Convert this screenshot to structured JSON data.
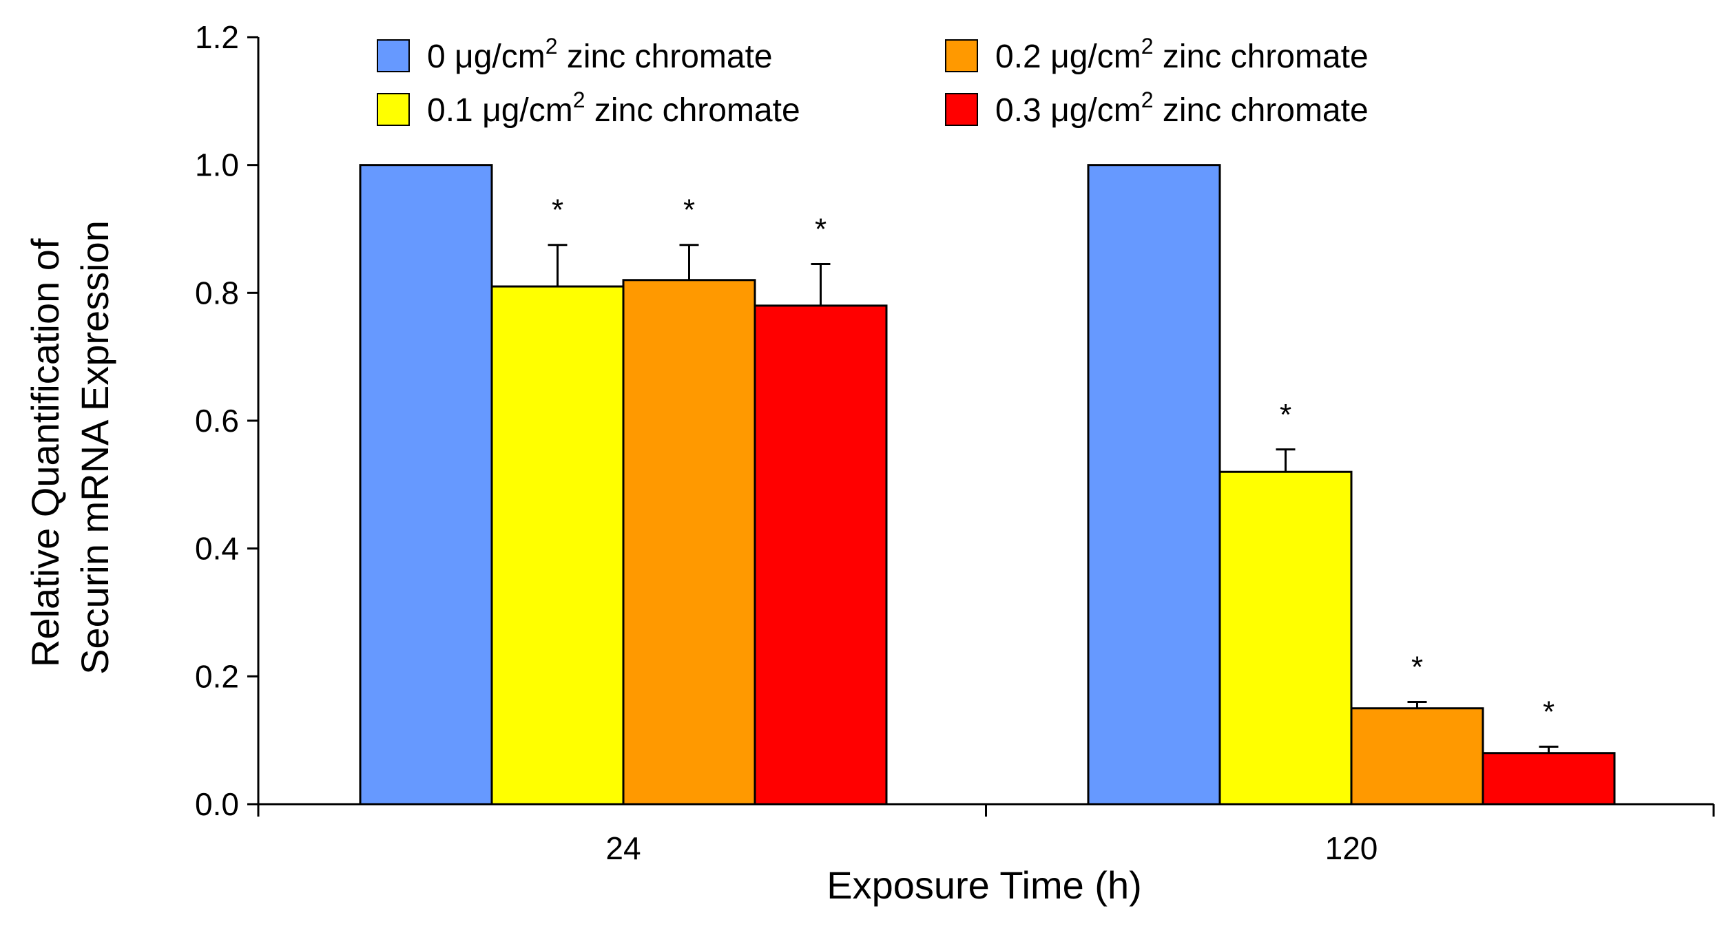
{
  "chart_data": {
    "type": "bar",
    "title": "",
    "xlabel": "Exposure Time (h)",
    "ylabel_lines": [
      "Relative Quantification of",
      "Securin mRNA Expression"
    ],
    "categories": [
      "24",
      "120"
    ],
    "ylim": [
      0,
      1.2
    ],
    "yticks": [
      "0.0",
      "0.2",
      "0.4",
      "0.6",
      "0.8",
      "1.0",
      "1.2"
    ],
    "legend_position": "top",
    "series": [
      {
        "name": "0 μg/cm2 zinc chromate",
        "label_pre": "0 μg/cm",
        "label_sup": "2",
        "label_post": " zinc chromate",
        "color": "#6699FF",
        "values": [
          1.0,
          1.0
        ],
        "errors": [
          0,
          0
        ],
        "significance": [
          "",
          ""
        ]
      },
      {
        "name": "0.1 μg/cm2 zinc chromate",
        "label_pre": "0.1 μg/cm",
        "label_sup": "2",
        "label_post": " zinc chromate",
        "color": "#FFFF00",
        "values": [
          0.81,
          0.52
        ],
        "errors": [
          0.065,
          0.035
        ],
        "significance": [
          "*",
          "*"
        ]
      },
      {
        "name": "0.2 μg/cm2 zinc chromate",
        "label_pre": "0.2 μg/cm",
        "label_sup": "2",
        "label_post": " zinc chromate",
        "color": "#FF9900",
        "values": [
          0.82,
          0.15
        ],
        "errors": [
          0.055,
          0.01
        ],
        "significance": [
          "*",
          "*"
        ]
      },
      {
        "name": "0.3 μg/cm2 zinc chromate",
        "label_pre": "0.3 μg/cm",
        "label_sup": "2",
        "label_post": " zinc chromate",
        "color": "#FF0000",
        "values": [
          0.78,
          0.08
        ],
        "errors": [
          0.065,
          0.01
        ],
        "significance": [
          "*",
          "*"
        ]
      }
    ]
  }
}
